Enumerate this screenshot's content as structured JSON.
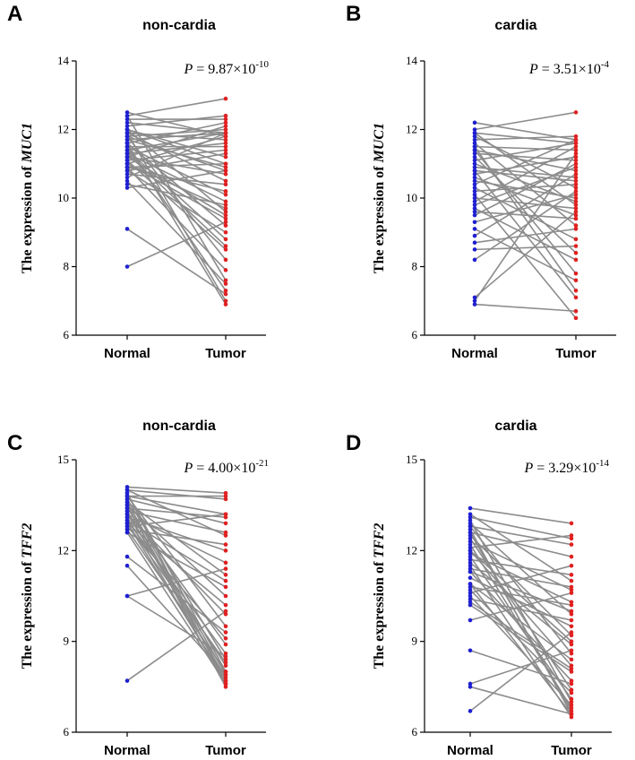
{
  "colors": {
    "normal": "#1f1fd1",
    "tumor": "#e02020",
    "line": "#8c8c8c"
  },
  "chart_data": [
    {
      "type": "scatter",
      "panel": "A",
      "title": "non-cardia",
      "ylabel_prefix": "The expression of ",
      "ylabel_gene": "MUC1",
      "categories": [
        "Normal",
        "Tumor"
      ],
      "ylim": [
        6,
        14
      ],
      "yticks": [
        "6",
        "8",
        "10",
        "12",
        "14"
      ],
      "pvalue": {
        "label": "P",
        "eq": " = ",
        "mantissa": "9.87×10",
        "exponent": "-10"
      },
      "pairs": [
        [
          12.5,
          11.8
        ],
        [
          12.4,
          12.9
        ],
        [
          12.3,
          12.3
        ],
        [
          12.2,
          11.9
        ],
        [
          12.1,
          12.4
        ],
        [
          12.0,
          11.2
        ],
        [
          12.0,
          9.6
        ],
        [
          11.9,
          11.7
        ],
        [
          11.9,
          10.5
        ],
        [
          11.8,
          12.0
        ],
        [
          11.8,
          8.2
        ],
        [
          11.7,
          11.9
        ],
        [
          11.7,
          10.9
        ],
        [
          11.6,
          12.2
        ],
        [
          11.6,
          9.2
        ],
        [
          11.5,
          11.5
        ],
        [
          11.5,
          10.1
        ],
        [
          11.4,
          11.9
        ],
        [
          11.4,
          8.8
        ],
        [
          11.3,
          11.6
        ],
        [
          11.3,
          9.9
        ],
        [
          11.2,
          12.1
        ],
        [
          11.2,
          10.7
        ],
        [
          11.1,
          11.4
        ],
        [
          11.1,
          8.5
        ],
        [
          11.0,
          11.8
        ],
        [
          11.0,
          9.4
        ],
        [
          10.9,
          11.0
        ],
        [
          10.9,
          7.9
        ],
        [
          10.8,
          11.3
        ],
        [
          10.8,
          9.0
        ],
        [
          10.7,
          10.4
        ],
        [
          10.6,
          11.9
        ],
        [
          10.5,
          7.5
        ],
        [
          10.4,
          9.8
        ],
        [
          10.3,
          10.8
        ],
        [
          9.1,
          7.2
        ],
        [
          8.0,
          9.3
        ],
        [
          12.4,
          7.6
        ],
        [
          11.9,
          7.0
        ],
        [
          11.6,
          6.9
        ],
        [
          11.3,
          8.6
        ],
        [
          11.0,
          9.7
        ],
        [
          10.9,
          10.2
        ],
        [
          11.8,
          10.8
        ],
        [
          12.0,
          11.0
        ],
        [
          11.5,
          7.3
        ],
        [
          11.2,
          9.5
        ]
      ]
    },
    {
      "type": "scatter",
      "panel": "B",
      "title": "cardia",
      "ylabel_prefix": "The expression of ",
      "ylabel_gene": "MUC1",
      "categories": [
        "Normal",
        "Tumor"
      ],
      "ylim": [
        6,
        14
      ],
      "yticks": [
        "6",
        "8",
        "10",
        "12",
        "14"
      ],
      "pvalue": {
        "label": "P",
        "eq": " = ",
        "mantissa": "3.51×10",
        "exponent": "-4"
      },
      "pairs": [
        [
          12.2,
          11.7
        ],
        [
          12.0,
          12.5
        ],
        [
          11.9,
          11.6
        ],
        [
          11.8,
          10.3
        ],
        [
          11.7,
          11.8
        ],
        [
          11.6,
          9.2
        ],
        [
          11.5,
          11.4
        ],
        [
          11.5,
          7.3
        ],
        [
          11.4,
          10.8
        ],
        [
          11.3,
          11.1
        ],
        [
          11.2,
          8.4
        ],
        [
          11.1,
          11.6
        ],
        [
          11.0,
          9.9
        ],
        [
          10.9,
          10.6
        ],
        [
          10.8,
          7.1
        ],
        [
          10.7,
          11.2
        ],
        [
          10.6,
          9.5
        ],
        [
          10.5,
          10.0
        ],
        [
          10.4,
          11.7
        ],
        [
          10.3,
          8.8
        ],
        [
          10.2,
          10.4
        ],
        [
          10.1,
          6.5
        ],
        [
          10.0,
          9.7
        ],
        [
          9.9,
          11.5
        ],
        [
          9.8,
          10.9
        ],
        [
          9.7,
          8.2
        ],
        [
          9.6,
          9.4
        ],
        [
          9.5,
          11.0
        ],
        [
          9.3,
          10.1
        ],
        [
          9.1,
          7.6
        ],
        [
          8.9,
          10.7
        ],
        [
          8.7,
          9.1
        ],
        [
          8.5,
          8.6
        ],
        [
          8.2,
          10.2
        ],
        [
          7.1,
          9.6
        ],
        [
          7.0,
          11.3
        ],
        [
          6.9,
          6.7
        ],
        [
          11.9,
          9.8
        ],
        [
          11.4,
          7.8
        ],
        [
          10.8,
          10.5
        ]
      ]
    },
    {
      "type": "scatter",
      "panel": "C",
      "title": "non-cardia",
      "ylabel_prefix": "The expression of ",
      "ylabel_gene": "TFF2",
      "categories": [
        "Normal",
        "Tumor"
      ],
      "ylim": [
        6,
        15
      ],
      "yticks": [
        "6",
        "9",
        "12",
        "15"
      ],
      "pvalue": {
        "label": "P",
        "eq": " = ",
        "mantissa": "4.00×10",
        "exponent": "-21"
      },
      "pairs": [
        [
          14.1,
          13.9
        ],
        [
          14.0,
          13.7
        ],
        [
          13.9,
          8.0
        ],
        [
          13.9,
          7.6
        ],
        [
          13.8,
          13.2
        ],
        [
          13.8,
          9.5
        ],
        [
          13.7,
          12.9
        ],
        [
          13.7,
          8.4
        ],
        [
          13.6,
          7.9
        ],
        [
          13.6,
          11.2
        ],
        [
          13.5,
          10.5
        ],
        [
          13.5,
          7.7
        ],
        [
          13.4,
          13.1
        ],
        [
          13.4,
          8.9
        ],
        [
          13.3,
          12.6
        ],
        [
          13.3,
          7.8
        ],
        [
          13.2,
          9.9
        ],
        [
          13.2,
          8.2
        ],
        [
          13.1,
          12.0
        ],
        [
          13.1,
          7.6
        ],
        [
          13.0,
          11.0
        ],
        [
          13.0,
          8.6
        ],
        [
          12.9,
          10.2
        ],
        [
          12.9,
          7.7
        ],
        [
          12.8,
          13.2
        ],
        [
          12.8,
          9.1
        ],
        [
          12.7,
          12.2
        ],
        [
          12.7,
          8.0
        ],
        [
          12.6,
          10.8
        ],
        [
          12.6,
          7.6
        ],
        [
          11.8,
          9.3
        ],
        [
          11.5,
          7.9
        ],
        [
          10.5,
          11.4
        ],
        [
          10.5,
          8.5
        ],
        [
          7.7,
          10.0
        ],
        [
          14.0,
          12.5
        ],
        [
          13.8,
          13.8
        ],
        [
          13.5,
          7.5
        ],
        [
          13.2,
          11.6
        ],
        [
          12.9,
          8.3
        ]
      ]
    },
    {
      "type": "scatter",
      "panel": "D",
      "title": "cardia",
      "ylabel_prefix": "The expression of ",
      "ylabel_gene": "TFF2",
      "categories": [
        "Normal",
        "Tumor"
      ],
      "ylim": [
        6,
        15
      ],
      "yticks": [
        "6",
        "9",
        "12",
        "15"
      ],
      "pvalue": {
        "label": "P",
        "eq": " = ",
        "mantissa": "3.29×10",
        "exponent": "-14"
      },
      "pairs": [
        [
          13.4,
          12.9
        ],
        [
          13.1,
          12.4
        ],
        [
          13.0,
          7.0
        ],
        [
          12.9,
          9.9
        ],
        [
          12.8,
          12.2
        ],
        [
          12.8,
          8.6
        ],
        [
          12.7,
          6.6
        ],
        [
          12.6,
          11.8
        ],
        [
          12.5,
          9.2
        ],
        [
          12.4,
          7.4
        ],
        [
          12.3,
          10.7
        ],
        [
          12.2,
          6.8
        ],
        [
          12.1,
          12.5
        ],
        [
          12.0,
          8.2
        ],
        [
          11.9,
          10.3
        ],
        [
          11.8,
          7.1
        ],
        [
          11.7,
          11.2
        ],
        [
          11.6,
          8.9
        ],
        [
          11.5,
          6.5
        ],
        [
          11.4,
          10.8
        ],
        [
          11.3,
          7.7
        ],
        [
          11.1,
          9.5
        ],
        [
          10.9,
          8.4
        ],
        [
          10.8,
          10.2
        ],
        [
          10.7,
          7.3
        ],
        [
          10.6,
          11.5
        ],
        [
          10.5,
          6.9
        ],
        [
          10.4,
          9.7
        ],
        [
          10.2,
          8.0
        ],
        [
          9.7,
          10.6
        ],
        [
          8.7,
          7.6
        ],
        [
          7.6,
          8.7
        ],
        [
          7.5,
          6.6
        ],
        [
          6.7,
          9.3
        ],
        [
          13.2,
          11.0
        ],
        [
          12.6,
          6.7
        ],
        [
          12.0,
          9.0
        ],
        [
          11.3,
          10.0
        ],
        [
          10.9,
          6.6
        ],
        [
          10.3,
          8.1
        ]
      ]
    }
  ]
}
